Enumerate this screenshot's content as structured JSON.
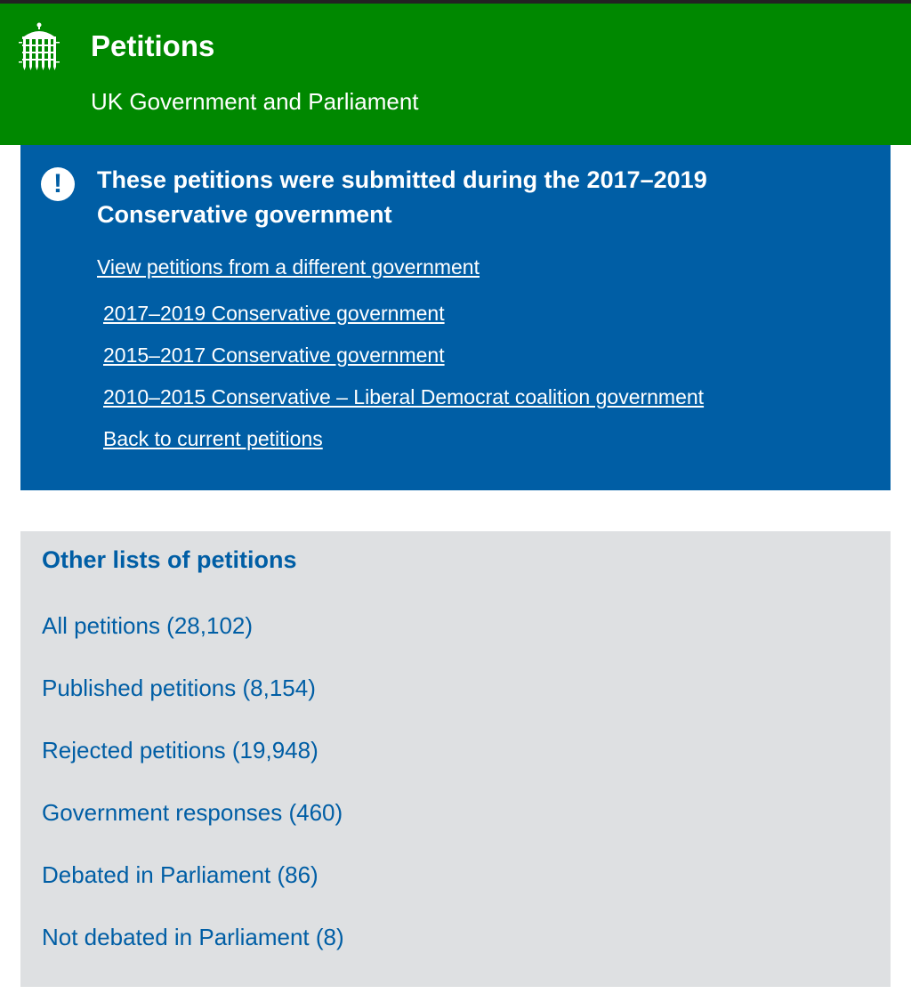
{
  "header": {
    "title": "Petitions",
    "subtitle": "UK Government and Parliament",
    "logo_icon": "portcullis-icon",
    "background_color": "#008800"
  },
  "notice": {
    "icon": "exclamation-icon",
    "heading": "These petitions were submitted during the 2017–2019 Conservative government",
    "view_link": "View petitions from a different government",
    "governments": [
      {
        "label": "2017–2019 Conservative government"
      },
      {
        "label": "2015–2017 Conservative government"
      },
      {
        "label": "2010–2015 Conservative – Liberal Democrat coalition government"
      },
      {
        "label": "Back to current petitions"
      }
    ],
    "background_color": "#005ea5"
  },
  "other_lists": {
    "heading": "Other lists of petitions",
    "items": [
      {
        "label": "All petitions (28,102)"
      },
      {
        "label": "Published petitions (8,154)"
      },
      {
        "label": "Rejected petitions (19,948)"
      },
      {
        "label": "Government responses (460)"
      },
      {
        "label": "Debated in Parliament (86)"
      },
      {
        "label": "Not debated in Parliament (8)"
      }
    ],
    "background_color": "#dee0e2",
    "link_color": "#005ea5"
  }
}
